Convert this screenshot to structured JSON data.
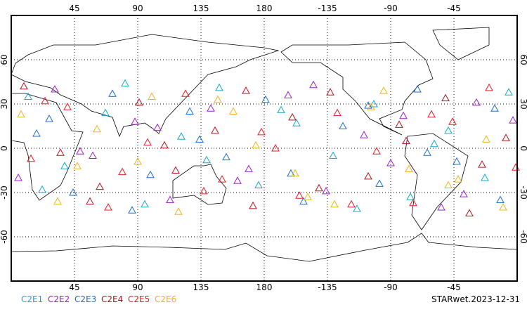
{
  "chart_data": {
    "type": "scatter",
    "xlim": [
      0,
      360
    ],
    "ylim": [
      -90,
      90
    ],
    "xticks": [
      45,
      90,
      135,
      180,
      {
        "value": 225,
        "label": "-135"
      },
      {
        "value": 270,
        "label": "-90"
      },
      {
        "value": 315,
        "label": "-45"
      }
    ],
    "yticks": [
      60,
      30,
      0,
      -30,
      -60
    ],
    "grid": true,
    "series": [
      {
        "name": "C2E1",
        "color": "#1aa8c8",
        "x": [
          12,
          38,
          67,
          95,
          121,
          148,
          176,
          203,
          229,
          258,
          284,
          311,
          337,
          22,
          81,
          139,
          192,
          246,
          301,
          354
        ],
        "values": [
          35,
          -12,
          24,
          -38,
          8,
          41,
          -25,
          17,
          -5,
          30,
          -33,
          12,
          -20,
          -28,
          44,
          -8,
          26,
          -41,
          3,
          38
        ]
      },
      {
        "name": "C2E2",
        "color": "#a020c8",
        "x": [
          5,
          31,
          58,
          88,
          113,
          142,
          169,
          197,
          224,
          251,
          279,
          306,
          331,
          49,
          104,
          161,
          215,
          270,
          322,
          357
        ],
        "values": [
          -20,
          40,
          -5,
          18,
          -35,
          27,
          -14,
          36,
          -29,
          9,
          22,
          -40,
          31,
          -2,
          14,
          -22,
          43,
          -10,
          -31,
          19
        ]
      },
      {
        "name": "C2E3",
        "color": "#1e6ed2",
        "x": [
          18,
          44,
          72,
          99,
          127,
          153,
          181,
          208,
          236,
          262,
          289,
          317,
          344,
          27,
          86,
          134,
          199,
          254,
          296,
          348
        ],
        "values": [
          10,
          -30,
          37,
          -18,
          25,
          -6,
          33,
          -36,
          15,
          -24,
          40,
          -9,
          27,
          20,
          -42,
          6,
          -17,
          29,
          -3,
          -35
        ]
      },
      {
        "name": "C2E4",
        "color": "#b4141e",
        "x": [
          9,
          35,
          63,
          91,
          117,
          145,
          172,
          200,
          227,
          254,
          281,
          309,
          335,
          56,
          109,
          167,
          219,
          276,
          326,
          352
        ],
        "values": [
          42,
          -3,
          -26,
          31,
          -15,
          12,
          -39,
          21,
          38,
          -19,
          5,
          34,
          -11,
          -36,
          2,
          39,
          -27,
          16,
          -44,
          7
        ]
      },
      {
        "name": "C2E5",
        "color": "#e61e28",
        "x": [
          14,
          40,
          69,
          97,
          124,
          150,
          178,
          205,
          232,
          260,
          286,
          314,
          340,
          24,
          79,
          137,
          188,
          242,
          299,
          359
        ],
        "values": [
          -7,
          28,
          -40,
          4,
          37,
          -21,
          11,
          -32,
          24,
          -2,
          -37,
          18,
          41,
          32,
          -16,
          -29,
          0,
          -38,
          23,
          -13
        ]
      },
      {
        "name": "C2E6",
        "color": "#f0b41e",
        "x": [
          7,
          33,
          61,
          90,
          119,
          147,
          174,
          202,
          230,
          256,
          283,
          311,
          338,
          47,
          100,
          158,
          211,
          265,
          318,
          350
        ],
        "values": [
          23,
          -36,
          13,
          -9,
          -43,
          33,
          2,
          -17,
          -38,
          28,
          -14,
          -25,
          6,
          -12,
          35,
          25,
          -33,
          39,
          -21,
          -40
        ]
      }
    ],
    "annotation": "STARwet.2023-12-31"
  }
}
